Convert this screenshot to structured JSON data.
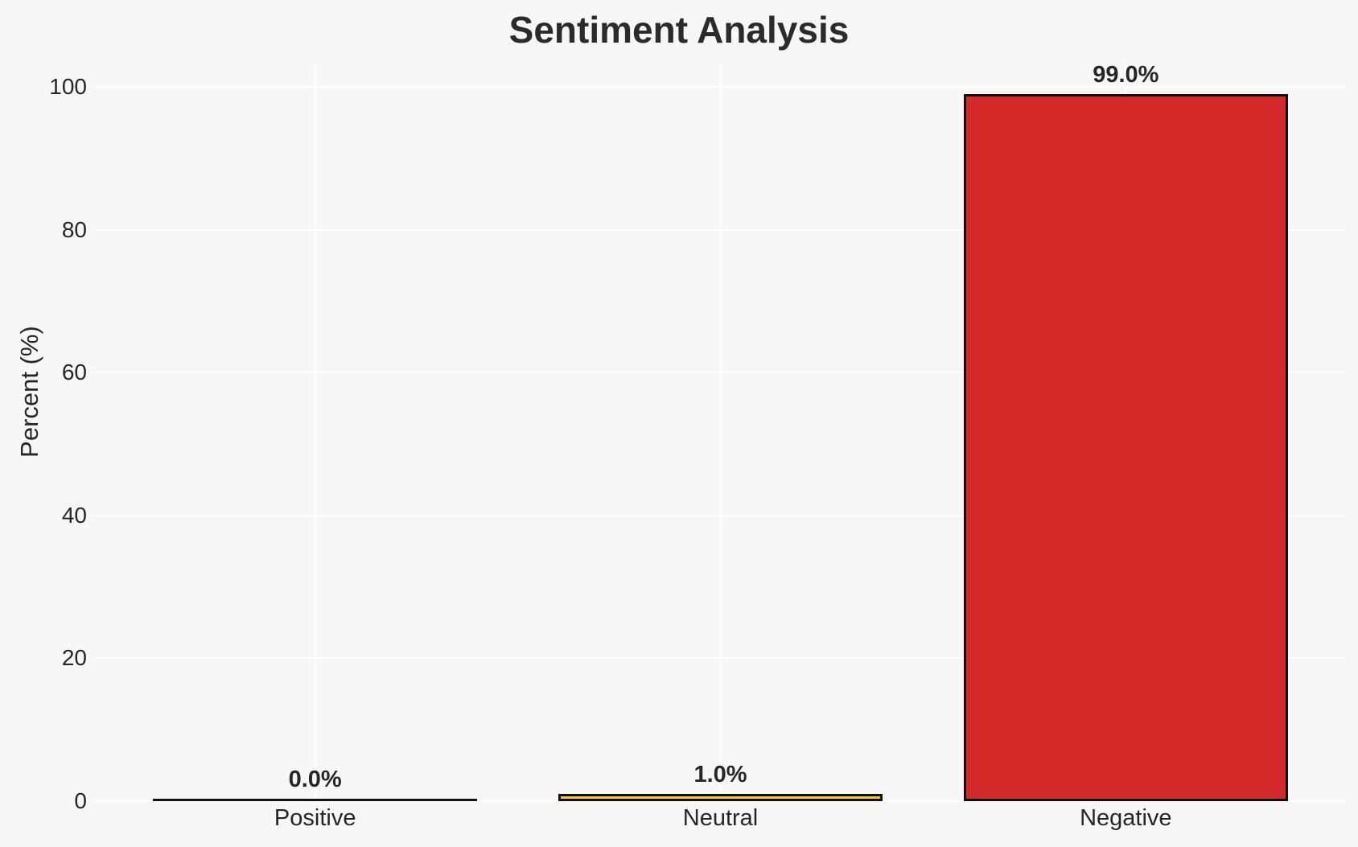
{
  "page": {
    "background_color": "#f7f7f7"
  },
  "chart_data": {
    "type": "bar",
    "title": "Sentiment Analysis",
    "xlabel": "",
    "ylabel": "Percent (%)",
    "categories": [
      "Positive",
      "Neutral",
      "Negative"
    ],
    "values": [
      0.0,
      1.0,
      99.0
    ],
    "bar_labels": [
      "0.0%",
      "1.0%",
      "99.0%"
    ],
    "bar_colors": [
      "none",
      "#f5c83b",
      "#d42a2a"
    ],
    "bar_edge_color": "#111111",
    "y_ticks": [
      0,
      20,
      40,
      60,
      80,
      100
    ],
    "ylim": [
      0,
      103.5
    ],
    "grid": true,
    "gridline_color": "#ffffff",
    "background_color": "#f7f7f7",
    "text_color": "#262626",
    "legend_position": "none"
  }
}
